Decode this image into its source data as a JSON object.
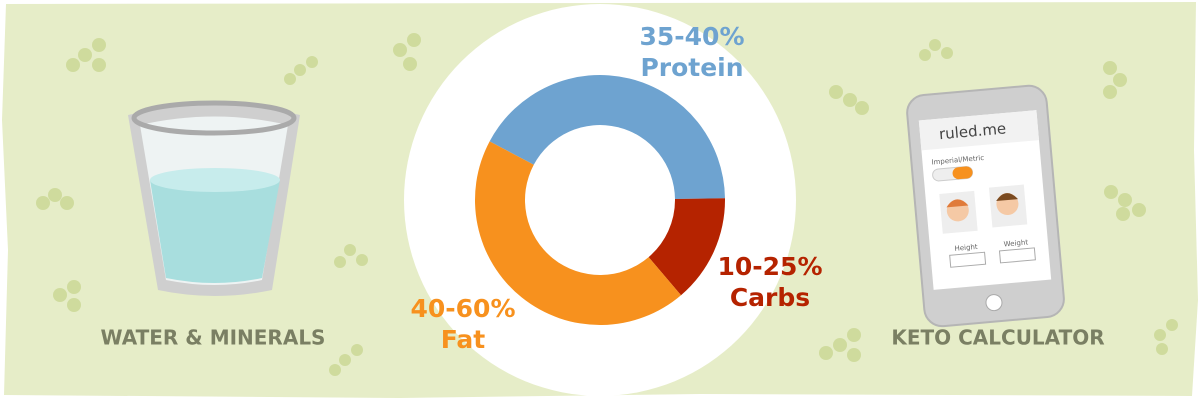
{
  "chart_data": {
    "type": "donut",
    "categories": [
      "Protein",
      "Carbs",
      "Fat"
    ],
    "range_labels": [
      "35-40%",
      "10-25%",
      "40-60%"
    ],
    "values": [
      42,
      14,
      44
    ],
    "colors": [
      "#6ea3d0",
      "#b52300",
      "#f7911e"
    ]
  },
  "left_panel": {
    "caption": "WATER & MINERALS"
  },
  "right_panel": {
    "caption": "KETO CALCULATOR",
    "phone": {
      "brand": "ruled.me",
      "toggle_label": "Imperial/Metric",
      "height_label": "Height",
      "weight_label": "Weight"
    }
  }
}
